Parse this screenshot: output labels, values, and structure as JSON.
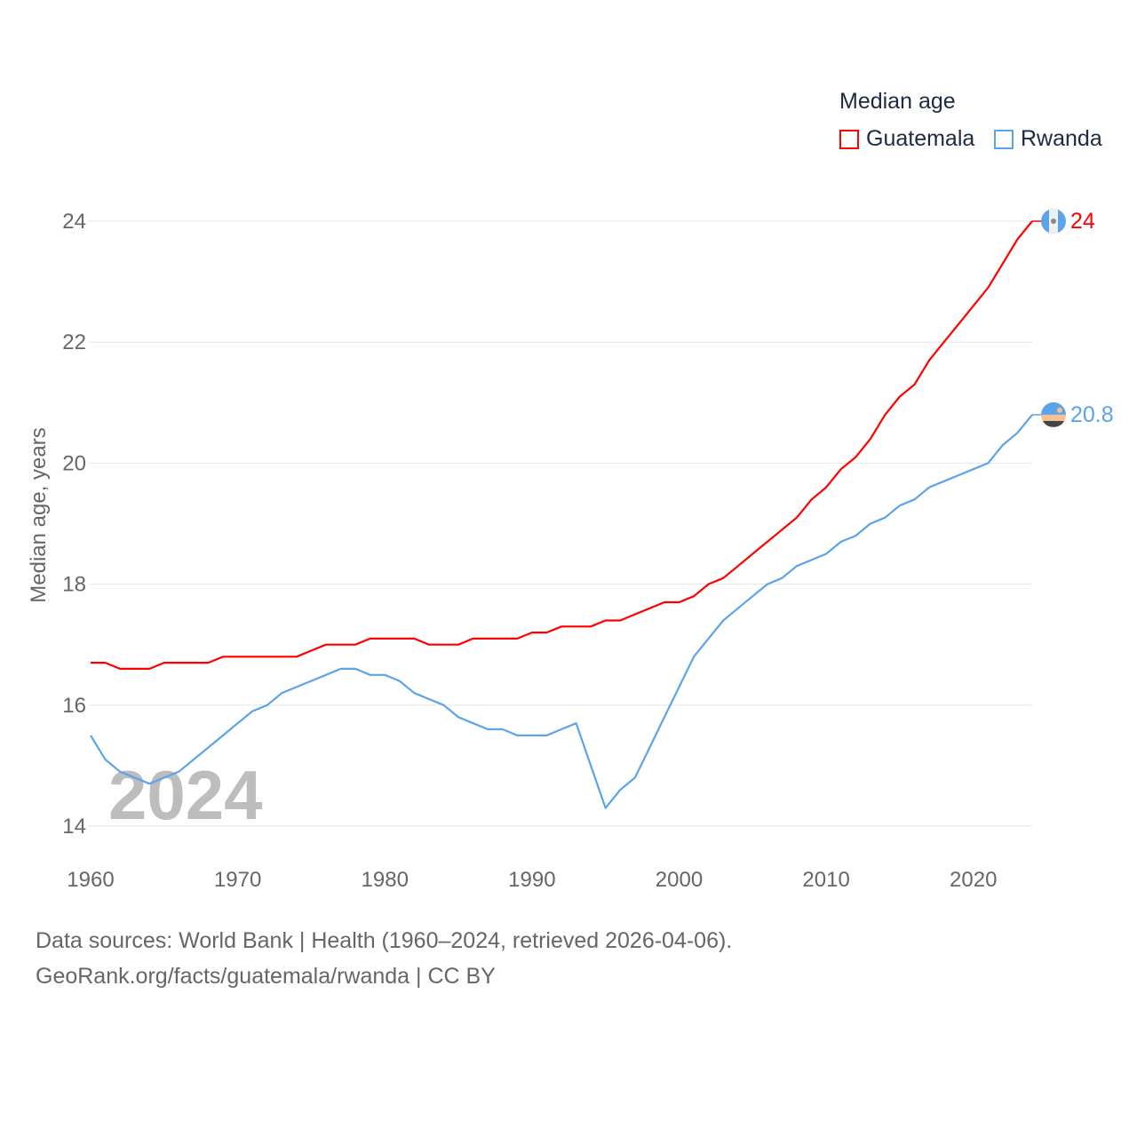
{
  "chart_data": {
    "type": "line",
    "title": "Median age",
    "xlabel": "",
    "ylabel": "Median age, years",
    "xlim": [
      1960,
      2024
    ],
    "ylim": [
      14,
      24
    ],
    "x_ticks": [
      "1960",
      "1970",
      "1980",
      "1990",
      "2000",
      "2010",
      "2020"
    ],
    "y_ticks": [
      "14",
      "16",
      "18",
      "20",
      "22",
      "24"
    ],
    "grid": true,
    "legend_position": "top-right",
    "watermark_year": "2024",
    "x_start": 1960,
    "series": [
      {
        "name": "Guatemala",
        "color": "#ff0000",
        "end_label": "24",
        "values": [
          16.7,
          16.7,
          16.6,
          16.6,
          16.6,
          16.7,
          16.7,
          16.7,
          16.7,
          16.8,
          16.8,
          16.8,
          16.8,
          16.8,
          16.8,
          16.9,
          17.0,
          17.0,
          17.0,
          17.1,
          17.1,
          17.1,
          17.1,
          17.0,
          17.0,
          17.0,
          17.1,
          17.1,
          17.1,
          17.1,
          17.2,
          17.2,
          17.3,
          17.3,
          17.3,
          17.4,
          17.4,
          17.5,
          17.6,
          17.7,
          17.7,
          17.8,
          18.0,
          18.1,
          18.3,
          18.5,
          18.7,
          18.9,
          19.1,
          19.4,
          19.6,
          19.9,
          20.1,
          20.4,
          20.8,
          21.1,
          21.3,
          21.7,
          22.0,
          22.3,
          22.6,
          22.9,
          23.3,
          23.7,
          24.0
        ]
      },
      {
        "name": "Rwanda",
        "color": "#5aa4ec",
        "end_label": "20.8",
        "values": [
          15.5,
          15.1,
          14.9,
          14.8,
          14.7,
          14.8,
          14.9,
          15.1,
          15.3,
          15.5,
          15.7,
          15.9,
          16.0,
          16.2,
          16.3,
          16.4,
          16.5,
          16.6,
          16.6,
          16.5,
          16.5,
          16.4,
          16.2,
          16.1,
          16.0,
          15.8,
          15.7,
          15.6,
          15.6,
          15.5,
          15.5,
          15.5,
          15.6,
          15.7,
          15.0,
          14.3,
          14.6,
          14.8,
          15.3,
          15.8,
          16.3,
          16.8,
          17.1,
          17.4,
          17.6,
          17.8,
          18.0,
          18.1,
          18.3,
          18.4,
          18.5,
          18.7,
          18.8,
          19.0,
          19.1,
          19.3,
          19.4,
          19.6,
          19.7,
          19.8,
          19.9,
          20.0,
          20.3,
          20.5,
          20.8
        ]
      }
    ]
  },
  "footer": {
    "line1": "Data sources: World Bank | Health (1960–2024, retrieved 2026-04-06).",
    "line2": "GeoRank.org/facts/guatemala/rwanda | CC BY"
  }
}
